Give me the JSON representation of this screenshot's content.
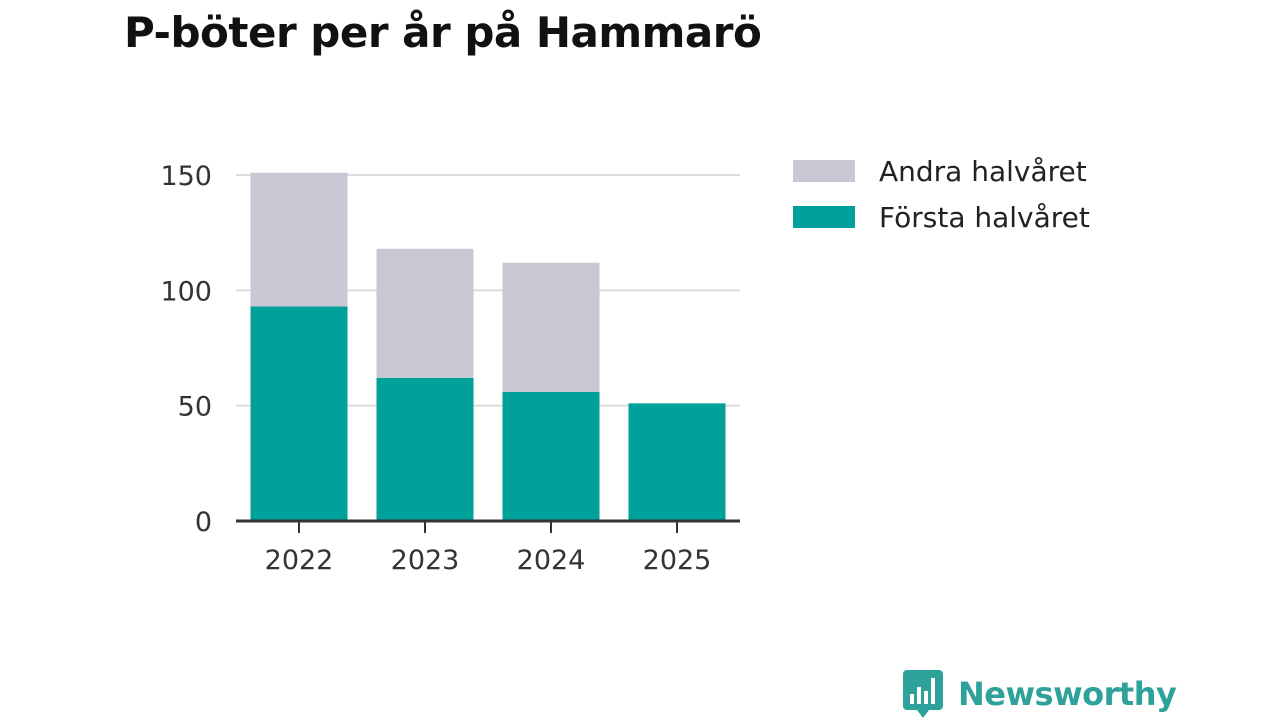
{
  "title": "P-böter per år på Hammarö",
  "chart_data": {
    "type": "bar",
    "stacked": true,
    "title": "P-böter per år på Hammarö",
    "categories": [
      "2022",
      "2023",
      "2024",
      "2025"
    ],
    "series": [
      {
        "name": "Första halvåret",
        "color": "#00a19a",
        "values": [
          93,
          62,
          56,
          51
        ]
      },
      {
        "name": "Andra halvåret",
        "color": "#c8c7d3",
        "values": [
          58,
          56,
          56,
          0
        ]
      }
    ],
    "xlabel": "",
    "ylabel": "",
    "ylim": [
      0,
      150
    ],
    "yticks": [
      "0",
      "50",
      "100",
      "150"
    ],
    "grid": true,
    "legend_position": "right"
  },
  "legend": [
    {
      "label": "Andra halvåret",
      "color": "#c8c7d3"
    },
    {
      "label": "Första halvåret",
      "color": "#00a19a"
    }
  ],
  "brand": {
    "name": "Newsworthy",
    "color": "#2ea29a"
  }
}
